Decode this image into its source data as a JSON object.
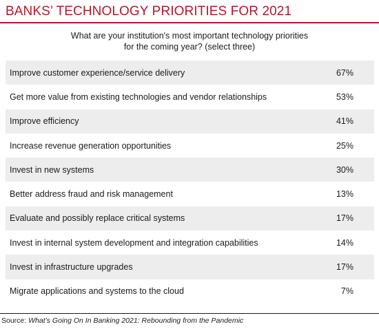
{
  "header": {
    "title": "BANKS’ TECHNOLOGY PRIORITIES FOR 2021",
    "question_line1": "What are your institution's most important technology priorities",
    "question_line2": "for the coming year? (select three)"
  },
  "chart_data": {
    "type": "table",
    "title": "BANKS’ TECHNOLOGY PRIORITIES FOR 2021",
    "rows": [
      {
        "label": "Improve customer experience/service delivery",
        "value": 67,
        "display": "67%"
      },
      {
        "label": "Get more value from existing technologies and vendor relationships",
        "value": 53,
        "display": "53%"
      },
      {
        "label": "Improve efficiency",
        "value": 41,
        "display": "41%"
      },
      {
        "label": "Increase revenue generation opportunities",
        "value": 25,
        "display": "25%"
      },
      {
        "label": "Invest in new systems",
        "value": 30,
        "display": "30%"
      },
      {
        "label": "Better address fraud and risk management",
        "value": 13,
        "display": "13%"
      },
      {
        "label": "Evaluate and possibly replace critical systems",
        "value": 17,
        "display": "17%"
      },
      {
        "label": "Invest in internal system development and integration capabilities",
        "value": 14,
        "display": "14%"
      },
      {
        "label": "Invest in infrastructure upgrades",
        "value": 17,
        "display": "17%"
      },
      {
        "label": "Migrate applications and systems to the cloud",
        "value": 7,
        "display": "7%"
      }
    ]
  },
  "footer": {
    "source_prefix": "Source: ",
    "source_title": "What’s Going On In Banking 2021: Rebounding from the Pandemic"
  },
  "colors": {
    "accent": "#b0192b",
    "row_shade": "#ededed"
  }
}
